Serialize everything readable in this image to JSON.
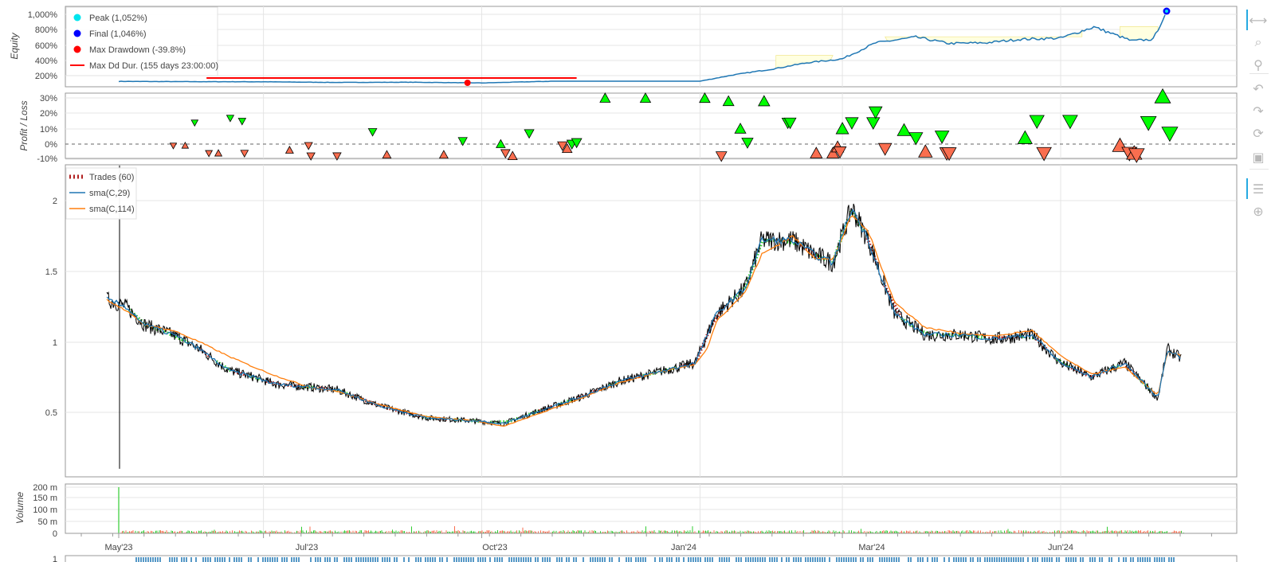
{
  "colors": {
    "equity_line": "#1f77b4",
    "sma_fast": "#1f77b4",
    "sma_slow": "#ff7f0e",
    "drawdown": "#ff0000",
    "peak": "#00e5ee",
    "final": "#0000ff",
    "win": "#00ff00",
    "loss": "#fa6e4f",
    "trade_win": "#32cd32",
    "trade_loss": "#b22222",
    "volume_up": "#32cd32",
    "volume_down": "#fa6e4f",
    "grid": "#e5e5e5",
    "toolbar_active": "#26aae1"
  },
  "equity_panel": {
    "ylabel": "Equity",
    "ticks": [
      "1,000%",
      "800%",
      "600%",
      "400%",
      "200%"
    ],
    "legend": {
      "peak": "Peak (1,052%)",
      "final": "Final (1,046%)",
      "max_drawdown": "Max Drawdown (-39.8%)",
      "max_dd_duration": "Max Dd Dur. (155 days 23:00:00)"
    }
  },
  "pnl_panel": {
    "ylabel": "Profit / Loss",
    "ticks": [
      "30%",
      "20%",
      "10%",
      "0%",
      "-10%"
    ]
  },
  "price_panel": {
    "ticks": [
      "2",
      "1.5",
      "1",
      "0.5"
    ],
    "legend": {
      "trades": "Trades (60)",
      "sma_fast": "sma(C,29)",
      "sma_slow": "sma(C,114)"
    }
  },
  "volume_panel": {
    "ylabel": "Volume",
    "ticks": [
      "200 m",
      "150 m",
      "100 m",
      "50 m",
      "0"
    ]
  },
  "x_axis": {
    "ticks": [
      "May'23",
      "Jul'23",
      "Oct'23",
      "Jan'24",
      "Mar'24",
      "Jun'24"
    ]
  },
  "bottom_panel": {
    "tick": "1"
  },
  "toolbar": {
    "items": [
      {
        "name": "pan-tool",
        "icon": "⟷"
      },
      {
        "name": "box-zoom-tool",
        "icon": "⌕"
      },
      {
        "name": "wheel-zoom-tool",
        "icon": "⚲"
      },
      {
        "name": "undo-tool",
        "icon": "↶"
      },
      {
        "name": "redo-tool",
        "icon": "↷"
      },
      {
        "name": "reset-tool",
        "icon": "⟳"
      },
      {
        "name": "save-tool",
        "icon": "▣"
      },
      {
        "name": "hover-tool",
        "icon": "☰"
      },
      {
        "name": "crosshair-tool",
        "icon": "⊕"
      }
    ]
  },
  "chart_data": [
    {
      "type": "line",
      "title": "",
      "ylabel": "Equity",
      "x": [
        "2023-05-01",
        "2023-06-01",
        "2023-07-01",
        "2023-08-01",
        "2023-09-01",
        "2023-10-01",
        "2023-11-01",
        "2023-12-01",
        "2024-01-01",
        "2024-01-15",
        "2024-02-01",
        "2024-02-15",
        "2024-03-01",
        "2024-03-15",
        "2024-04-01",
        "2024-04-15",
        "2024-05-01",
        "2024-05-15",
        "2024-06-01",
        "2024-06-15",
        "2024-07-01",
        "2024-07-10",
        "2024-07-15"
      ],
      "series": [
        {
          "values": [
            100,
            96,
            94,
            85,
            88,
            78,
            103,
            103,
            103,
            192,
            278,
            365,
            421,
            648,
            730,
            640,
            650,
            700,
            716,
            875,
            677,
            700,
            1046
          ]
        }
      ],
      "ylim": [
        80,
        1100
      ],
      "peak": {
        "x": "2024-07-15",
        "y": 1052
      },
      "final": {
        "x": "2024-07-15",
        "y": 1046
      },
      "max_drawdown": {
        "x": "2023-09-25",
        "y": 80,
        "pct": -39.8
      },
      "max_dd_duration": {
        "x_start": "2023-06-07",
        "x_end": "2023-11-10",
        "y": 148
      }
    },
    {
      "type": "scatter",
      "ylabel": "Profit / Loss",
      "ylim": [
        -10,
        30
      ],
      "points": [
        {
          "x": "2023-05-24",
          "y": -1,
          "dir": "short"
        },
        {
          "x": "2023-05-29",
          "y": -1,
          "dir": "long"
        },
        {
          "x": "2023-06-02",
          "y": 14,
          "dir": "short"
        },
        {
          "x": "2023-06-08",
          "y": -6,
          "dir": "short"
        },
        {
          "x": "2023-06-12",
          "y": -6,
          "dir": "long"
        },
        {
          "x": "2023-06-17",
          "y": 17,
          "dir": "short"
        },
        {
          "x": "2023-06-22",
          "y": 15,
          "dir": "short"
        },
        {
          "x": "2023-06-23",
          "y": -6,
          "dir": "short"
        },
        {
          "x": "2023-07-12",
          "y": -4,
          "dir": "long"
        },
        {
          "x": "2023-07-20",
          "y": -1,
          "dir": "short"
        },
        {
          "x": "2023-07-21",
          "y": -8,
          "dir": "short"
        },
        {
          "x": "2023-08-01",
          "y": -8,
          "dir": "short"
        },
        {
          "x": "2023-08-16",
          "y": 8,
          "dir": "short"
        },
        {
          "x": "2023-08-22",
          "y": -7,
          "dir": "long"
        },
        {
          "x": "2023-09-15",
          "y": -7,
          "dir": "long"
        },
        {
          "x": "2023-09-23",
          "y": 2,
          "dir": "short"
        },
        {
          "x": "2023-10-09",
          "y": 0,
          "dir": "long"
        },
        {
          "x": "2023-10-11",
          "y": -6,
          "dir": "short"
        },
        {
          "x": "2023-10-14",
          "y": -8,
          "dir": "long"
        },
        {
          "x": "2023-10-21",
          "y": 7,
          "dir": "short"
        },
        {
          "x": "2023-11-04",
          "y": -1,
          "dir": "short"
        },
        {
          "x": "2023-11-06",
          "y": -3,
          "dir": "long"
        },
        {
          "x": "2023-11-08",
          "y": 0,
          "dir": "short"
        },
        {
          "x": "2023-11-10",
          "y": 1,
          "dir": "short"
        },
        {
          "x": "2023-11-22",
          "y": 30,
          "dir": "long"
        },
        {
          "x": "2023-12-09",
          "y": 30,
          "dir": "long"
        },
        {
          "x": "2024-01-03",
          "y": 30,
          "dir": "long"
        },
        {
          "x": "2024-01-10",
          "y": -8,
          "dir": "short"
        },
        {
          "x": "2024-01-13",
          "y": 28,
          "dir": "long"
        },
        {
          "x": "2024-01-18",
          "y": 10,
          "dir": "long"
        },
        {
          "x": "2024-01-21",
          "y": 1,
          "dir": "short"
        },
        {
          "x": "2024-01-28",
          "y": 28,
          "dir": "long"
        },
        {
          "x": "2024-02-07",
          "y": 14,
          "dir": "short"
        },
        {
          "x": "2024-02-08",
          "y": 14,
          "dir": "short"
        },
        {
          "x": "2024-02-19",
          "y": -6,
          "dir": "long"
        },
        {
          "x": "2024-02-26",
          "y": -6,
          "dir": "long"
        },
        {
          "x": "2024-02-28",
          "y": -2,
          "dir": "long"
        },
        {
          "x": "2024-02-29",
          "y": -5,
          "dir": "short"
        },
        {
          "x": "2024-03-01",
          "y": 10,
          "dir": "long"
        },
        {
          "x": "2024-03-05",
          "y": 14,
          "dir": "short"
        },
        {
          "x": "2024-03-14",
          "y": 14,
          "dir": "short"
        },
        {
          "x": "2024-03-15",
          "y": 21,
          "dir": "short"
        },
        {
          "x": "2024-03-19",
          "y": -3,
          "dir": "short"
        },
        {
          "x": "2024-03-27",
          "y": 9,
          "dir": "long"
        },
        {
          "x": "2024-04-01",
          "y": 4,
          "dir": "short"
        },
        {
          "x": "2024-04-05",
          "y": -5,
          "dir": "long"
        },
        {
          "x": "2024-04-12",
          "y": 5,
          "dir": "short"
        },
        {
          "x": "2024-04-14",
          "y": -6,
          "dir": "short"
        },
        {
          "x": "2024-04-15",
          "y": -6,
          "dir": "short"
        },
        {
          "x": "2024-05-17",
          "y": 4,
          "dir": "long"
        },
        {
          "x": "2024-05-22",
          "y": 15,
          "dir": "short"
        },
        {
          "x": "2024-05-25",
          "y": -6,
          "dir": "short"
        },
        {
          "x": "2024-06-05",
          "y": 15,
          "dir": "short"
        },
        {
          "x": "2024-06-26",
          "y": -1,
          "dir": "long"
        },
        {
          "x": "2024-06-30",
          "y": -6,
          "dir": "short"
        },
        {
          "x": "2024-07-02",
          "y": -6,
          "dir": "long"
        },
        {
          "x": "2024-07-03",
          "y": -7,
          "dir": "short"
        },
        {
          "x": "2024-07-08",
          "y": 14,
          "dir": "short"
        },
        {
          "x": "2024-07-14",
          "y": 31,
          "dir": "long"
        },
        {
          "x": "2024-07-17",
          "y": 7,
          "dir": "short"
        }
      ]
    },
    {
      "type": "line",
      "title": "",
      "ylim": [
        0.1,
        2.25
      ],
      "x": [
        "2023-04-26",
        "2023-05-04",
        "2023-05-12",
        "2023-05-24",
        "2023-06-04",
        "2023-06-16",
        "2023-06-27",
        "2023-07-06",
        "2023-07-20",
        "2023-08-01",
        "2023-08-20",
        "2023-09-08",
        "2023-09-28",
        "2023-10-10",
        "2023-10-25",
        "2023-11-12",
        "2023-11-28",
        "2023-12-13",
        "2023-12-30",
        "2024-01-04",
        "2024-01-08",
        "2024-01-20",
        "2024-01-27",
        "2024-02-09",
        "2024-02-18",
        "2024-02-26",
        "2024-03-05",
        "2024-03-12",
        "2024-03-23",
        "2024-04-05",
        "2024-04-20",
        "2024-05-04",
        "2024-05-20",
        "2024-06-01",
        "2024-06-14",
        "2024-06-28",
        "2024-07-12",
        "2024-07-16",
        "2024-07-22"
      ],
      "series": [
        {
          "name": "sma(C,29)",
          "values": [
            1.3,
            1.25,
            1.12,
            1.05,
            0.95,
            0.8,
            0.75,
            0.7,
            0.68,
            0.66,
            0.54,
            0.46,
            0.44,
            0.42,
            0.51,
            0.61,
            0.72,
            0.78,
            0.85,
            1.05,
            1.2,
            1.38,
            1.72,
            1.72,
            1.62,
            1.56,
            1.95,
            1.72,
            1.2,
            1.05,
            1.05,
            1.02,
            1.05,
            0.85,
            0.75,
            0.85,
            0.6,
            0.95,
            0.88
          ]
        },
        {
          "name": "sma(C,114)",
          "values": [
            1.3,
            1.22,
            1.12,
            1.08,
            1.0,
            0.9,
            0.82,
            0.76,
            0.68,
            0.65,
            0.55,
            0.47,
            0.44,
            0.4,
            0.49,
            0.6,
            0.71,
            0.78,
            0.84,
            0.95,
            1.15,
            1.35,
            1.62,
            1.75,
            1.6,
            1.58,
            1.9,
            1.78,
            1.28,
            1.1,
            1.06,
            1.04,
            1.08,
            0.9,
            0.77,
            0.82,
            0.62,
            0.93,
            0.9
          ]
        }
      ],
      "trades_count": 60
    },
    {
      "type": "bar",
      "ylabel": "Volume",
      "ylim": [
        0,
        200000000
      ],
      "spike": {
        "x": "2023-04-26",
        "y": 200000000
      },
      "typical": 8000000
    }
  ]
}
